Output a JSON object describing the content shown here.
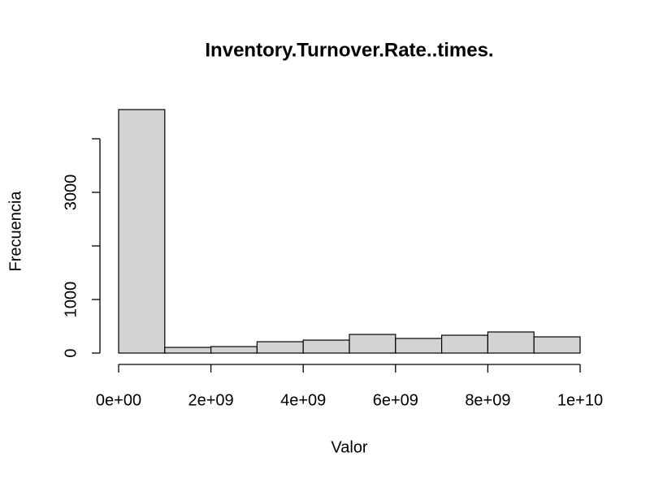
{
  "chart_data": {
    "type": "histogram",
    "title": "Inventory.Turnover.Rate..times.",
    "xlabel": "Valor",
    "ylabel": "Frecuencia",
    "bins": [
      0,
      1000000000,
      2000000000,
      3000000000,
      4000000000,
      5000000000,
      6000000000,
      7000000000,
      8000000000,
      9000000000,
      10000000000
    ],
    "values": [
      4545,
      106,
      121,
      212,
      242,
      348,
      273,
      333,
      394,
      303
    ],
    "color": "#d3d3d3",
    "xlim": [
      0,
      10000000000
    ],
    "xticks": [
      {
        "value": 0,
        "label": "0e+00"
      },
      {
        "value": 2000000000,
        "label": "2e+09"
      },
      {
        "value": 4000000000,
        "label": "4e+09"
      },
      {
        "value": 6000000000,
        "label": "6e+09"
      },
      {
        "value": 8000000000,
        "label": "8e+09"
      },
      {
        "value": 10000000000,
        "label": "1e+10"
      }
    ],
    "ylim": [
      0,
      4545
    ],
    "yticks": [
      0,
      1000,
      {
        "value": 2000,
        "label": null
      },
      3000,
      {
        "value": 4000,
        "label": null
      }
    ]
  }
}
